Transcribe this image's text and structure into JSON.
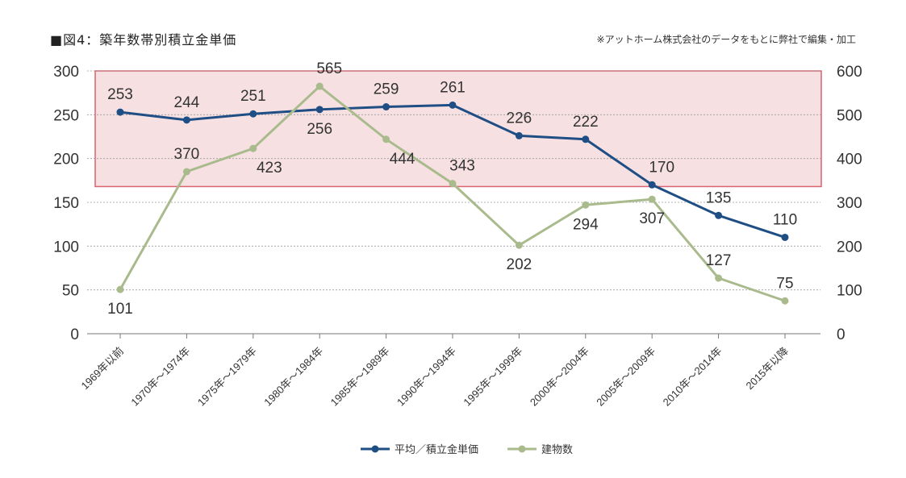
{
  "chart_data": {
    "type": "line",
    "title": "■図4：築年数帯別積立金単価",
    "note": "※アットホーム株式会社のデータをもとに弊社で編集・加工",
    "categories": [
      "1969年以前",
      "1970年〜1974年",
      "1975年〜1979年",
      "1980年〜1984年",
      "1985年〜1989年",
      "1990年〜1994年",
      "1995年〜1999年",
      "2000年〜2004年",
      "2005年〜2009年",
      "2010年〜2014年",
      "2015年以降"
    ],
    "left_axis": {
      "ylim": [
        0,
        300
      ],
      "ticks": [
        "0",
        "50",
        "100",
        "150",
        "200",
        "250",
        "300"
      ]
    },
    "right_axis": {
      "ylim": [
        0,
        600
      ],
      "ticks": [
        "0",
        "100",
        "200",
        "300",
        "400",
        "500",
        "600"
      ]
    },
    "highlight_range_left": [
      168,
      300
    ],
    "series": [
      {
        "name": "平均／積立金単価",
        "axis": "left",
        "color": "#1f4e85",
        "values": [
          253,
          244,
          251,
          256,
          259,
          261,
          226,
          222,
          170,
          135,
          110
        ]
      },
      {
        "name": "建物数",
        "axis": "right",
        "color": "#a9bb8d",
        "values": [
          101,
          370,
          423,
          565,
          444,
          343,
          202,
          294,
          307,
          127,
          75
        ]
      }
    ]
  },
  "colors": {
    "highlight_fill": "#f6e0e2",
    "highlight_stroke": "#d9636f",
    "grid": "#9a9a9a"
  }
}
